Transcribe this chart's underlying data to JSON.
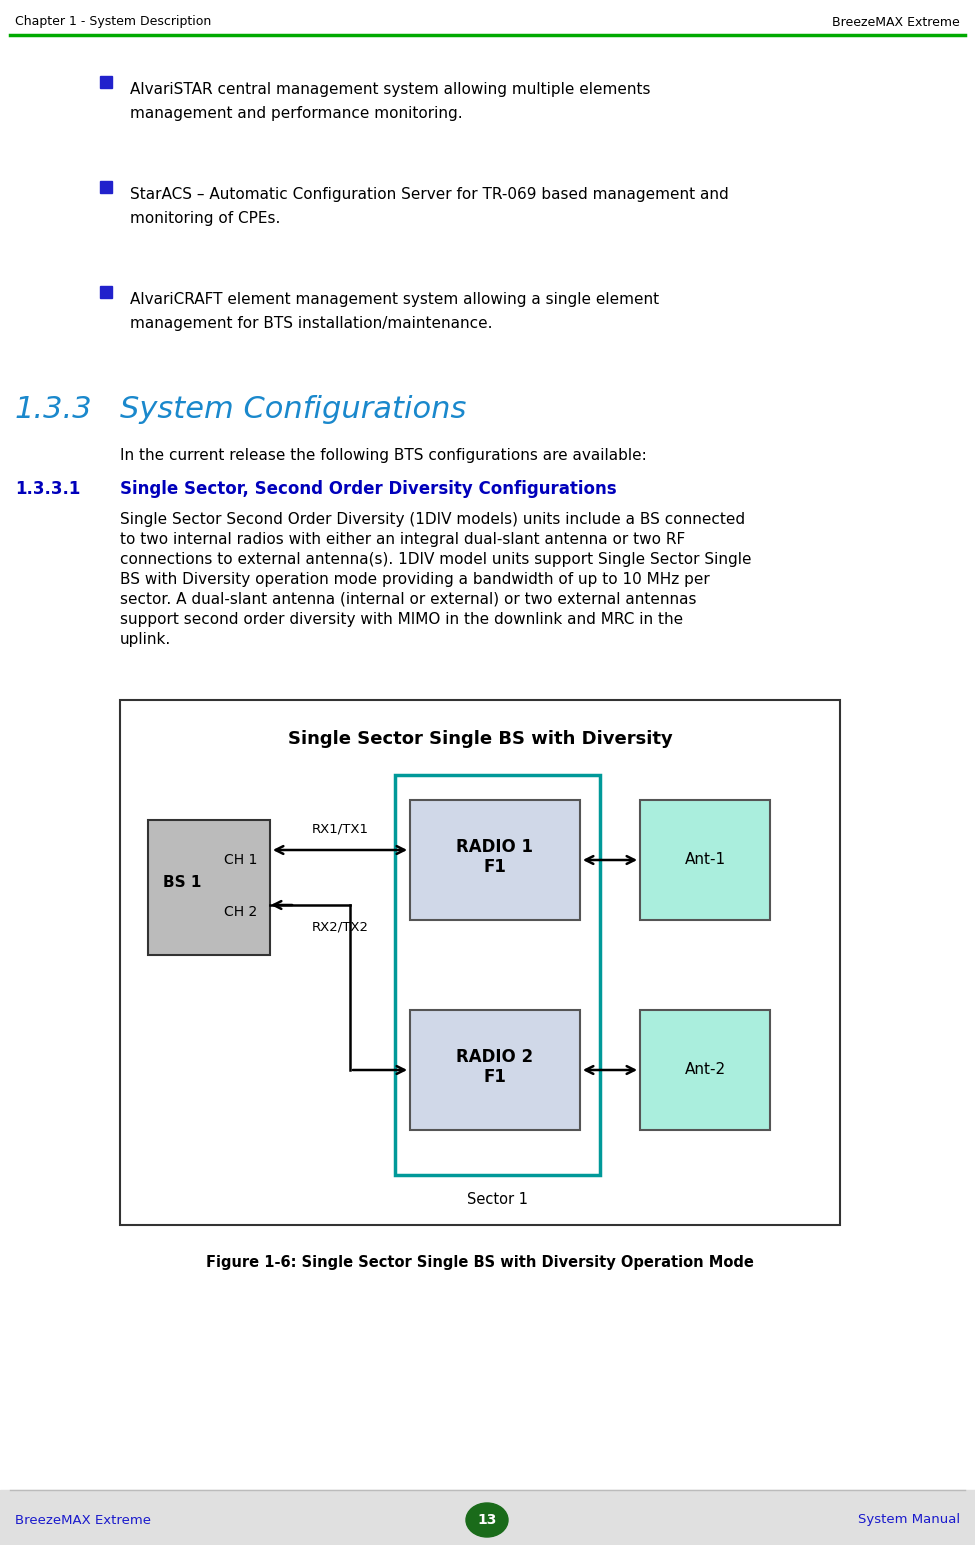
{
  "header_left": "Chapter 1 - System Description",
  "header_right": "BreezeMAX Extreme",
  "footer_left": "BreezeMAX Extreme",
  "footer_center": "13",
  "footer_right": "System Manual",
  "header_line_color": "#00aa00",
  "bg_color": "#ffffff",
  "footer_bg_color": "#e0e0e0",
  "bullet_color": "#2222cc",
  "text_color": "#000000",
  "blue_heading_color": "#1a1acc",
  "green_heading_color": "#1a88cc",
  "section_num": "1.3.3",
  "section_title": "System Configurations",
  "section_intro": "In the current release the following BTS configurations are available:",
  "subsection_num": "1.3.3.1",
  "subsection_title": "Single Sector, Second Order Diversity Configurations",
  "diagram_title": "Single Sector Single BS with Diversity",
  "figure_caption": "Figure 1-6: Single Sector Single BS with Diversity Operation Mode",
  "bs_box_color": "#bbbbbb",
  "radio_outer_color": "#009999",
  "radio_inner_color": "#d0d8e8",
  "ant_color": "#aaeedd",
  "label_rx1tx1": "RX1/TX1",
  "label_rx2tx2": "RX2/TX2",
  "label_bs1": "BS 1",
  "label_ch1": "CH 1",
  "label_ch2": "CH 2",
  "label_ant1": "Ant-1",
  "label_ant2": "Ant-2",
  "label_sector1": "Sector 1",
  "bullet1_line1": "AlvariSTAR central management system allowing multiple elements",
  "bullet1_line2": "management and performance monitoring.",
  "bullet2_line1": "StarACS – Automatic Configuration Server for TR-069 based management and",
  "bullet2_line2": "monitoring of CPEs.",
  "bullet3_line1": "AlvariCRAFT element management system allowing a single element",
  "bullet3_line2": "management for BTS installation/maintenance.",
  "body_lines": [
    "Single Sector Second Order Diversity (1DIV models) units include a BS connected",
    "to two internal radios with either an integral dual-slant antenna or two RF",
    "connections to external antenna(s). 1DIV model units support Single Sector Single",
    "BS with Diversity operation mode providing a bandwidth of up to 10 MHz per",
    "sector. A dual-slant antenna (internal or external) or two external antennas",
    "support second order diversity with MIMO in the downlink and MRC in the",
    "uplink."
  ]
}
